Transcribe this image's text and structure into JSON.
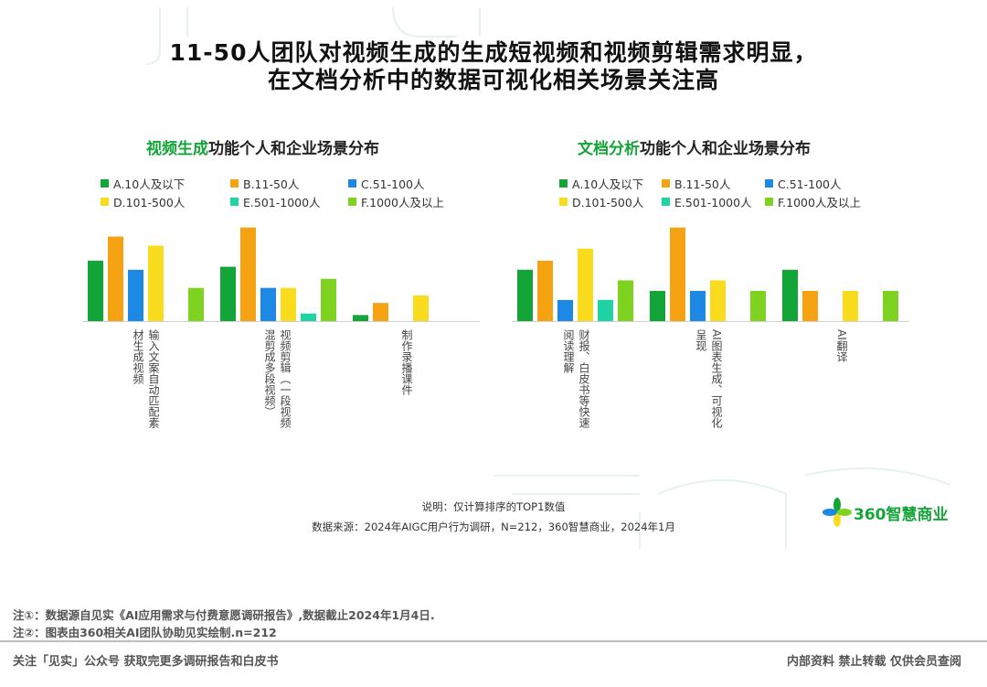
{
  "header": {
    "title_line1": "11-50人团队对视频生成的生成短视频和视频剪辑需求明显，",
    "title_line2": "在文档分析中的数据可视化相关场景关注高"
  },
  "chart_data": [
    {
      "type": "bar",
      "title_highlight": "视频生成",
      "title_rest": "功能个人和企业场景分布",
      "categories": [
        "输入文案自动匹配素材生成视频",
        "视频剪辑（一段视频混剪成多段视频）",
        "制作录播课件"
      ],
      "category_lines": [
        [
          "输入文案自动匹配素",
          "材生成视频"
        ],
        [
          "视频剪辑（一段视频",
          "混剪成多段视频）"
        ],
        [
          "制作录播课件"
        ]
      ],
      "series": [
        {
          "name": "A.10人及以下",
          "color": "#13a538",
          "values": [
            20,
            18,
            2
          ]
        },
        {
          "name": "B.11-50人",
          "color": "#f5a312",
          "values": [
            28,
            31,
            6
          ]
        },
        {
          "name": "C.51-100人",
          "color": "#1e88e5",
          "values": [
            17,
            11,
            null
          ]
        },
        {
          "name": "D.101-500人",
          "color": "#fadc1e",
          "values": [
            25,
            11,
            8.5
          ]
        },
        {
          "name": "E.501-1000人",
          "color": "#1fd3a5",
          "values": [
            null,
            2.5,
            null
          ]
        },
        {
          "name": "F.1000人及以上",
          "color": "#7ed321",
          "values": [
            11,
            14,
            null
          ]
        }
      ]
    },
    {
      "type": "bar",
      "title_highlight": "文档分析",
      "title_rest": "功能个人和企业场景分布",
      "categories": [
        "财报、白皮书等快速阅读理解",
        "AI图表生成、可视化呈现",
        "AI翻译"
      ],
      "category_lines": [
        [
          "财报、白皮书等快速",
          "阅读理解"
        ],
        [
          "AI图表生成、可视化",
          "呈现"
        ],
        [
          "AI翻译"
        ]
      ],
      "series": [
        {
          "name": "A.10人及以下",
          "color": "#13a538",
          "values": [
            17,
            10,
            17
          ]
        },
        {
          "name": "B.11-50人",
          "color": "#f5a312",
          "values": [
            20,
            31,
            10
          ]
        },
        {
          "name": "C.51-100人",
          "color": "#1e88e5",
          "values": [
            7,
            10,
            null
          ]
        },
        {
          "name": "D.101-500人",
          "color": "#fadc1e",
          "values": [
            24,
            13.5,
            10
          ]
        },
        {
          "name": "E.501-1000人",
          "color": "#1fd3a5",
          "values": [
            7,
            null,
            null
          ]
        },
        {
          "name": "F.1000人及以上",
          "color": "#7ed321",
          "values": [
            13.5,
            10,
            10
          ]
        }
      ]
    }
  ],
  "notes": {
    "explanation": "说明：仅计算排序的TOP1数值",
    "source": "数据来源：2024年AIGC用户行为调研，N=212，360智慧商业，2024年1月"
  },
  "logo": {
    "text": "360智慧商业"
  },
  "footnotes": {
    "note1": "注①：数据源自见实《AI应用需求与付费意愿调研报告》,数据截止2024年1月4日.",
    "note2": "注②：图表由360相关AI团队协助见实绘制.n=212"
  },
  "footer": {
    "left": "关注「见实」公众号 获取完更多调研报告和白皮书",
    "right": "内部资料 禁止转载 仅供会员查阅"
  }
}
